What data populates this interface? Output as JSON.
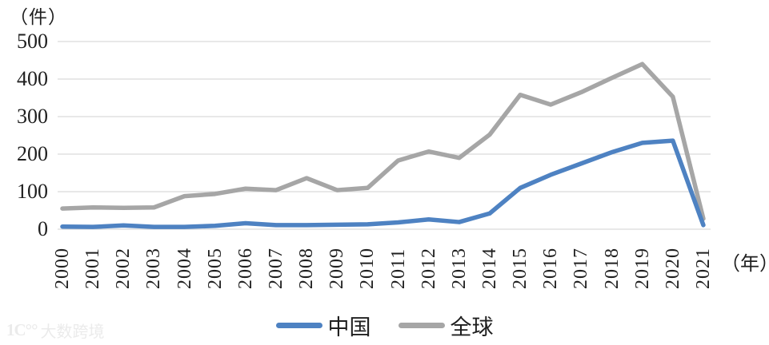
{
  "chart_data": {
    "type": "line",
    "title": "",
    "unit_y_label": "（件）",
    "unit_x_label": "（年）",
    "categories": [
      "2000",
      "2001",
      "2002",
      "2003",
      "2004",
      "2005",
      "2006",
      "2007",
      "2008",
      "2009",
      "2010",
      "2011",
      "2012",
      "2013",
      "2014",
      "2015",
      "2016",
      "2017",
      "2018",
      "2019",
      "2020",
      "2021"
    ],
    "series": [
      {
        "name": "中国",
        "color": "#4e82c2",
        "values": [
          7,
          6,
          10,
          6,
          6,
          9,
          16,
          11,
          11,
          12,
          13,
          18,
          26,
          19,
          42,
          110,
          145,
          175,
          205,
          230,
          236,
          11
        ]
      },
      {
        "name": "全球",
        "color": "#a6a6a6",
        "values": [
          55,
          58,
          57,
          58,
          88,
          94,
          108,
          104,
          136,
          104,
          110,
          183,
          207,
          190,
          252,
          358,
          332,
          365,
          403,
          440,
          353,
          28
        ]
      }
    ],
    "ylim": [
      0,
      500
    ],
    "yticks": [
      0,
      100,
      200,
      300,
      400,
      500
    ],
    "grid": "horizontal",
    "grid_color": "#d9d9d9",
    "legend_position": "bottom"
  },
  "watermark": {
    "logo": "1C°°",
    "text": "大数跨境"
  }
}
